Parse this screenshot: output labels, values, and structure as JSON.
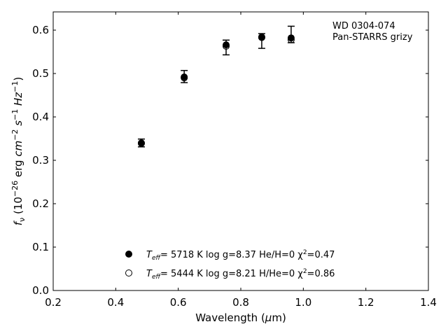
{
  "chart_data": {
    "type": "scatter",
    "annotations": [
      "WD 0304-074",
      "Pan-STARRS grizy"
    ],
    "xlabel": [
      "Wavelength (",
      "μ",
      "m)"
    ],
    "ylabel": [
      "f",
      "ν",
      " (10",
      "−26",
      " erg ",
      "cm",
      "−2",
      " s",
      "−1",
      " Hz",
      "−1",
      ")"
    ],
    "xlim": [
      0.2,
      1.4
    ],
    "xticks": [
      {
        "value": 0.2,
        "label": "0.2"
      },
      {
        "value": 0.4,
        "label": "0.4"
      },
      {
        "value": 0.6,
        "label": "0.6"
      },
      {
        "value": 0.8,
        "label": "0.8"
      },
      {
        "value": 1.0,
        "label": "1.0"
      },
      {
        "value": 1.2,
        "label": "1.2"
      },
      {
        "value": 1.4,
        "label": "1.4"
      }
    ],
    "ylim": [
      0,
      0.642
    ],
    "yticks": [
      {
        "value": 0,
        "label": "0.0"
      },
      0.1,
      0.2,
      0.3,
      0.4,
      0.5,
      0.6
    ],
    "series": [
      {
        "color": "#000000",
        "x": [
          0.482,
          0.619,
          0.753,
          0.867,
          0.961
        ],
        "values": [
          0.34,
          0.493,
          0.56,
          0.575,
          0.59
        ],
        "errors": [
          0.009,
          0.014,
          0.017,
          0.017,
          0.019
        ]
      },
      {
        "name": [
          "T",
          "eff",
          "=  5718 K  log g=8.37  He/H=0  χ",
          "2",
          "=0.47"
        ],
        "color": "#000000",
        "marker": "filled",
        "x": [
          0.482,
          0.619,
          0.753,
          0.867,
          0.961
        ],
        "values": [
          0.34,
          0.492,
          0.566,
          0.584,
          0.582
        ]
      },
      {
        "name": [
          "T",
          "eff",
          "=  5444 K  log g=8.21  H/He=0  χ",
          "2",
          "=0.86"
        ],
        "color": "#000000",
        "marker": "open",
        "x": [
          0.482,
          0.619,
          0.753,
          0.867,
          0.961
        ],
        "values": [
          0.339,
          0.49,
          0.563,
          0.583,
          0.578
        ]
      }
    ]
  }
}
